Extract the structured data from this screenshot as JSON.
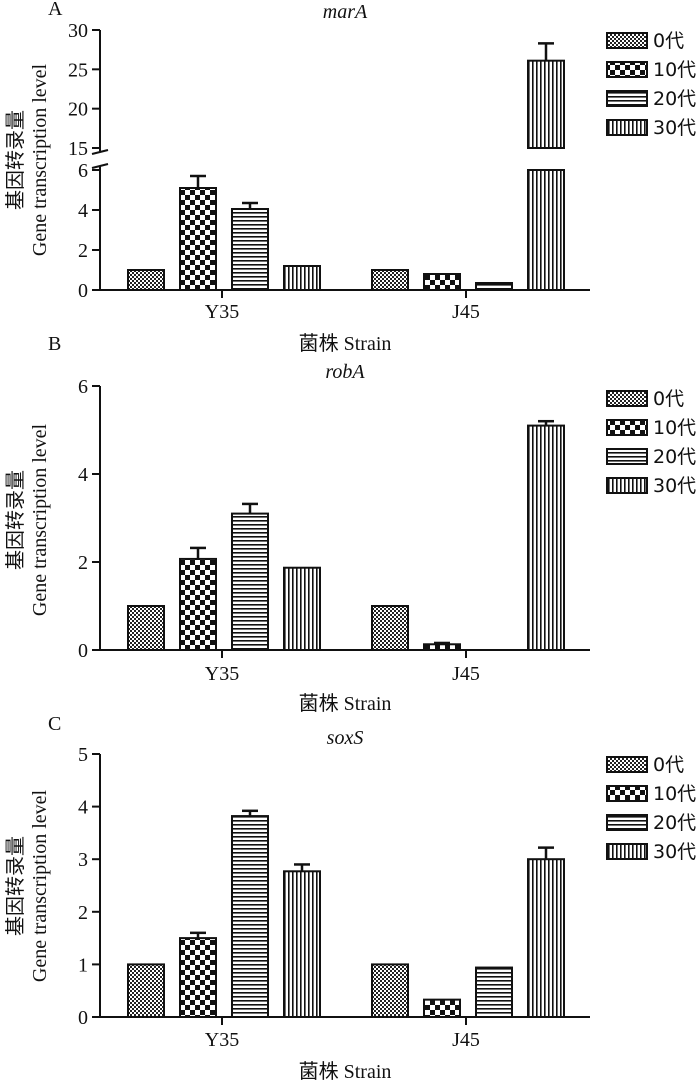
{
  "legend": {
    "labels": [
      "0代",
      "10代",
      "20代",
      "30代"
    ],
    "patterns": [
      "dense-check",
      "coarse-check",
      "horizontal-stripes",
      "vertical-stripes"
    ]
  },
  "chart_data": [
    {
      "panel_letter": "A",
      "title": "marA",
      "type": "bar",
      "categories": [
        "Y35",
        "J45"
      ],
      "xlabel": "菌株 Strain",
      "ylabel_cn": "基因转录量",
      "ylabel_en": "Gene transcription level",
      "broken_axis": true,
      "lower_ylim": [
        0,
        6
      ],
      "lower_ticks": [
        "0",
        "2",
        "4",
        "6"
      ],
      "upper_ylim": [
        15,
        30
      ],
      "upper_ticks": [
        "15",
        "20",
        "25",
        "30"
      ],
      "series": [
        {
          "name": "0代",
          "values": [
            1.0,
            1.0
          ],
          "errors": [
            0,
            0
          ]
        },
        {
          "name": "10代",
          "values": [
            5.1,
            0.8
          ],
          "errors": [
            0.6,
            0
          ]
        },
        {
          "name": "20代",
          "values": [
            4.05,
            0.35
          ],
          "errors": [
            0.3,
            0
          ]
        },
        {
          "name": "30代",
          "values": [
            1.2,
            26.1
          ],
          "errors": [
            0,
            2.2
          ]
        }
      ]
    },
    {
      "panel_letter": "B",
      "title": "robA",
      "type": "bar",
      "categories": [
        "Y35",
        "J45"
      ],
      "xlabel": "菌株 Strain",
      "ylabel_cn": "基因转录量",
      "ylabel_en": "Gene transcription level",
      "ylim": [
        0,
        6
      ],
      "ticks": [
        "0",
        "2",
        "4",
        "6"
      ],
      "series": [
        {
          "name": "0代",
          "values": [
            1.0,
            1.0
          ],
          "errors": [
            0,
            0
          ]
        },
        {
          "name": "10代",
          "values": [
            2.07,
            0.13
          ],
          "errors": [
            0.25,
            0.03
          ]
        },
        {
          "name": "20代",
          "values": [
            3.1,
            0
          ],
          "errors": [
            0.22,
            0
          ]
        },
        {
          "name": "30代",
          "values": [
            1.87,
            5.1
          ],
          "errors": [
            0,
            0.1
          ]
        }
      ]
    },
    {
      "panel_letter": "C",
      "title": "soxS",
      "type": "bar",
      "categories": [
        "Y35",
        "J45"
      ],
      "xlabel": "菌株 Strain",
      "ylabel_cn": "基因转录量",
      "ylabel_en": "Gene transcription level",
      "ylim": [
        0,
        5
      ],
      "ticks": [
        "0",
        "1",
        "2",
        "3",
        "4",
        "5"
      ],
      "series": [
        {
          "name": "0代",
          "values": [
            1.0,
            1.0
          ],
          "errors": [
            0,
            0
          ]
        },
        {
          "name": "10代",
          "values": [
            1.5,
            0.33
          ],
          "errors": [
            0.1,
            0
          ]
        },
        {
          "name": "20代",
          "values": [
            3.82,
            0.94
          ],
          "errors": [
            0.1,
            0
          ]
        },
        {
          "name": "30代",
          "values": [
            2.77,
            3.0
          ],
          "errors": [
            0.13,
            0.22
          ]
        }
      ]
    }
  ]
}
